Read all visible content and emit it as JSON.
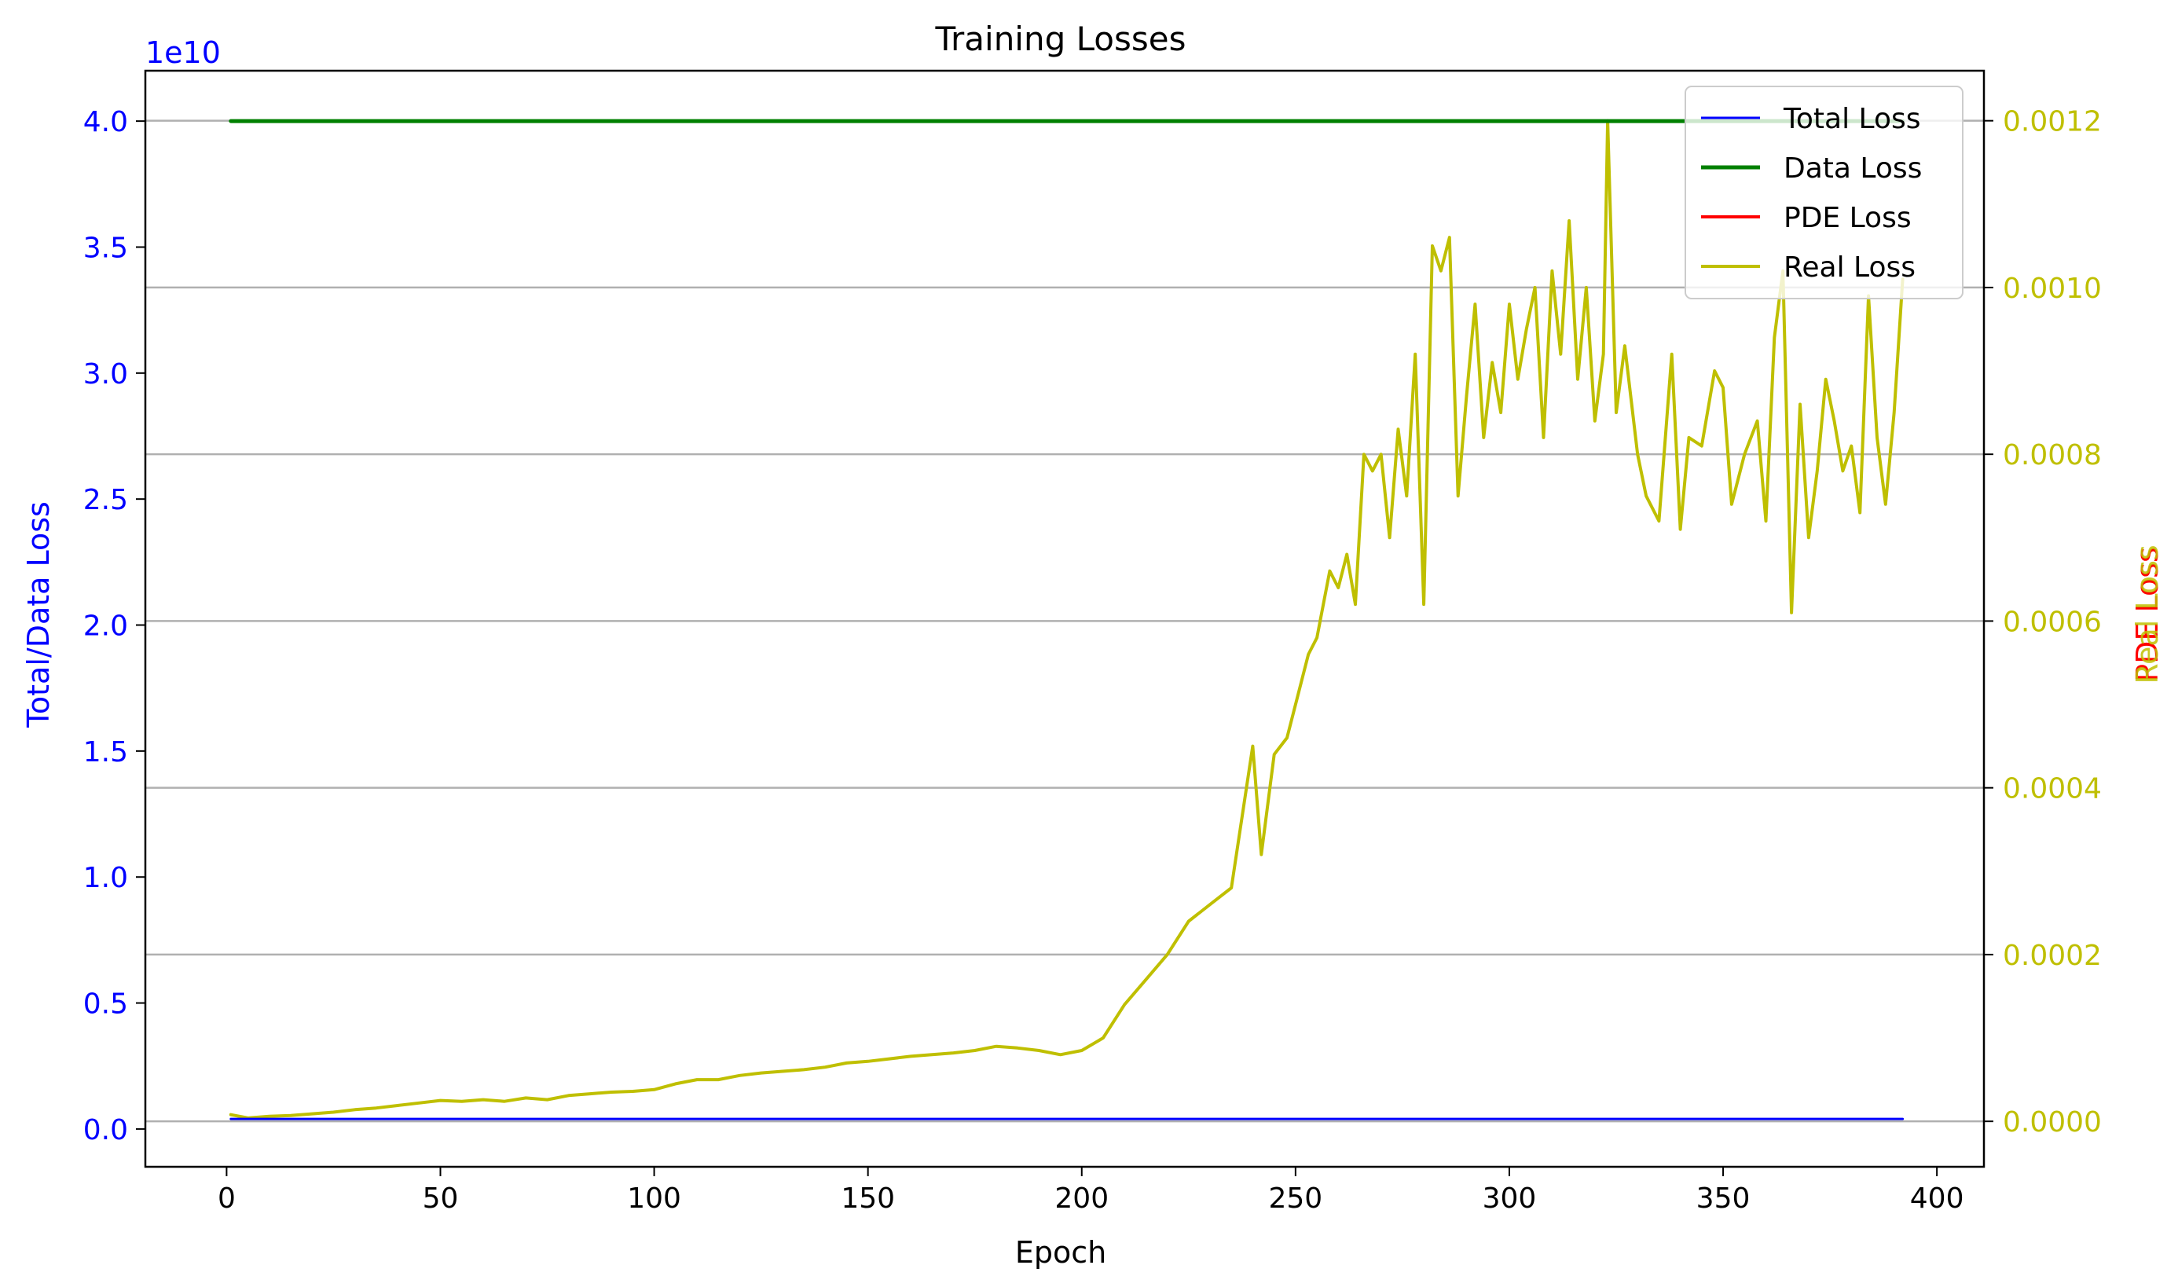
{
  "chart_data": {
    "type": "line",
    "title": "Training Losses",
    "xlabel": "Epoch",
    "ylabel_left": "Total/Data Loss",
    "ylabel_right_labels": [
      "PDE Loss",
      "Real Loss"
    ],
    "left_axis_offset_text": "1e10",
    "xlim": [
      -19,
      411
    ],
    "ylim_left": [
      -0.15,
      4.2
    ],
    "ylim_right": [
      -5.45e-05,
      0.00126
    ],
    "x_ticks": [
      0,
      50,
      100,
      150,
      200,
      250,
      300,
      350,
      400
    ],
    "x_tick_labels": [
      "0",
      "50",
      "100",
      "150",
      "200",
      "250",
      "300",
      "350",
      "400"
    ],
    "y_left_ticks": [
      0.0,
      0.5,
      1.0,
      1.5,
      2.0,
      2.5,
      3.0,
      3.5,
      4.0
    ],
    "y_left_tick_labels": [
      "0.0",
      "0.5",
      "1.0",
      "1.5",
      "2.0",
      "2.5",
      "3.0",
      "3.5",
      "4.0"
    ],
    "y_right_ticks": [
      0.0,
      0.0002,
      0.0004,
      0.0006,
      0.0008,
      0.001,
      0.0012
    ],
    "y_right_tick_labels": [
      "0.0000",
      "0.0002",
      "0.0004",
      "0.0006",
      "0.0008",
      "0.0010",
      "0.0012"
    ],
    "grid": "horizontal at right-axis ticks",
    "legend_position": "top-right",
    "colors": {
      "total": "#0000ff",
      "data": "#008000",
      "pde": "#ff0000",
      "real": "#bfbf00",
      "left_axis": "#0000ff",
      "right_axis": "#bfbf00",
      "grid": "#b0b0b0"
    },
    "series": [
      {
        "name": "Total Loss",
        "axis": "left",
        "color": "#0000ff",
        "width": 3,
        "x": [
          1,
          392
        ],
        "values": [
          0.04,
          0.04
        ]
      },
      {
        "name": "Data Loss",
        "axis": "left",
        "color": "#008000",
        "width": 5,
        "x": [
          1,
          392
        ],
        "values": [
          4.0,
          4.0
        ]
      },
      {
        "name": "PDE Loss",
        "axis": "right",
        "color": "#ff0000",
        "width": 4,
        "x": [],
        "values": []
      },
      {
        "name": "Real Loss",
        "axis": "right",
        "color": "#bfbf00",
        "width": 4,
        "x": [
          1,
          5,
          10,
          15,
          20,
          25,
          30,
          35,
          40,
          45,
          50,
          55,
          60,
          65,
          70,
          75,
          80,
          85,
          90,
          95,
          100,
          105,
          110,
          115,
          120,
          125,
          130,
          135,
          140,
          145,
          150,
          155,
          160,
          165,
          170,
          175,
          180,
          185,
          190,
          195,
          200,
          205,
          210,
          215,
          220,
          225,
          230,
          235,
          240,
          242,
          245,
          248,
          250,
          253,
          255,
          258,
          260,
          262,
          264,
          266,
          268,
          270,
          272,
          274,
          276,
          278,
          280,
          282,
          284,
          286,
          288,
          290,
          292,
          294,
          296,
          298,
          300,
          302,
          304,
          306,
          308,
          310,
          312,
          314,
          316,
          318,
          320,
          322,
          323,
          325,
          327,
          330,
          332,
          335,
          338,
          340,
          342,
          345,
          348,
          350,
          352,
          355,
          358,
          360,
          362,
          364,
          366,
          368,
          370,
          372,
          374,
          376,
          378,
          380,
          382,
          384,
          386,
          388,
          390,
          392
        ],
        "values": [
          8e-06,
          4e-06,
          6e-06,
          7e-06,
          9e-06,
          1.1e-05,
          1.4e-05,
          1.6e-05,
          1.9e-05,
          2.2e-05,
          2.5e-05,
          2.4e-05,
          2.6e-05,
          2.4e-05,
          2.8e-05,
          2.6e-05,
          3.1e-05,
          3.3e-05,
          3.5e-05,
          3.6e-05,
          3.8e-05,
          4.5e-05,
          5e-05,
          5e-05,
          5.5e-05,
          5.8e-05,
          6e-05,
          6.2e-05,
          6.5e-05,
          7e-05,
          7.2e-05,
          7.5e-05,
          7.8e-05,
          8e-05,
          8.2e-05,
          8.5e-05,
          9e-05,
          8.8e-05,
          8.5e-05,
          8e-05,
          8.5e-05,
          0.0001,
          0.00014,
          0.00017,
          0.0002,
          0.00024,
          0.00026,
          0.00028,
          0.00045,
          0.00032,
          0.00044,
          0.00046,
          0.0005,
          0.00056,
          0.00058,
          0.00066,
          0.00064,
          0.00068,
          0.00062,
          0.0008,
          0.00078,
          0.0008,
          0.0007,
          0.00083,
          0.00075,
          0.00092,
          0.00062,
          0.00105,
          0.00102,
          0.00106,
          0.00075,
          0.00087,
          0.00098,
          0.00082,
          0.00091,
          0.00085,
          0.00098,
          0.00089,
          0.00095,
          0.001,
          0.00082,
          0.00102,
          0.00092,
          0.00108,
          0.00089,
          0.001,
          0.00084,
          0.00092,
          0.0012,
          0.00085,
          0.00093,
          0.0008,
          0.00075,
          0.00072,
          0.00092,
          0.00071,
          0.00082,
          0.00081,
          0.0009,
          0.00088,
          0.00074,
          0.0008,
          0.00084,
          0.00072,
          0.00094,
          0.00102,
          0.00061,
          0.00086,
          0.0007,
          0.00078,
          0.00089,
          0.00084,
          0.00078,
          0.00081,
          0.00073,
          0.00099,
          0.00082,
          0.00074,
          0.00085,
          0.00101
        ]
      }
    ]
  }
}
